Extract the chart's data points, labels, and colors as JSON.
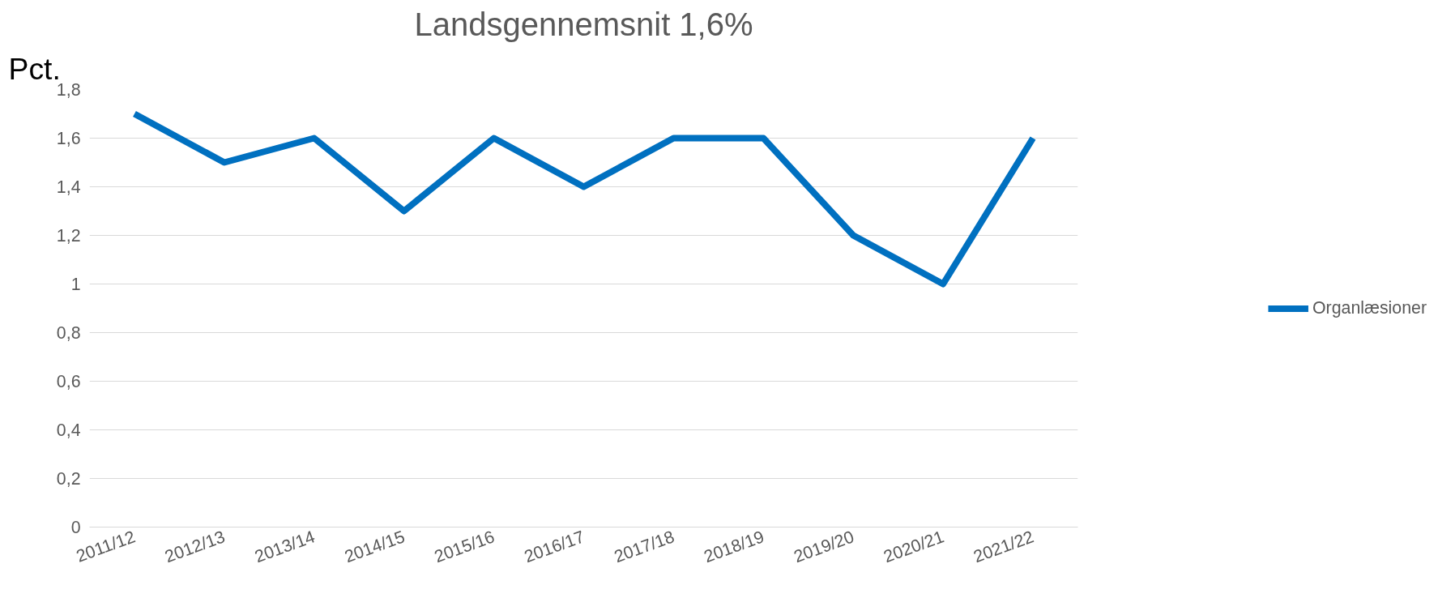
{
  "chart_data": {
    "type": "line",
    "title": "Landsgennemsnit 1,6%",
    "ylabel": "Pct.",
    "categories": [
      "2011/12",
      "2012/13",
      "2013/14",
      "2014/15",
      "2015/16",
      "2016/17",
      "2017/18",
      "2018/19",
      "2019/20",
      "2020/21",
      "2021/22"
    ],
    "series": [
      {
        "name": "Organlæsioner",
        "color": "#0070c0",
        "values": [
          1.7,
          1.5,
          1.6,
          1.3,
          1.6,
          1.4,
          1.6,
          1.6,
          1.2,
          1.0,
          1.6
        ]
      }
    ],
    "ylim": [
      0,
      1.8
    ],
    "yticks": [
      0,
      {
        "value": 0.2,
        "label": "0,2"
      },
      {
        "value": 0.4,
        "label": "0,4"
      },
      {
        "value": 0.6,
        "label": "0,6"
      },
      {
        "value": 0.8,
        "label": "0,8"
      },
      1,
      {
        "value": 1.2,
        "label": "1,2"
      },
      {
        "value": 1.4,
        "label": "1,4"
      },
      {
        "value": 1.6,
        "label": "1,6"
      },
      {
        "value": 1.8,
        "label": "1,8"
      }
    ],
    "grid": "y",
    "legend": "right",
    "marker": "none",
    "line_style": "solid"
  }
}
